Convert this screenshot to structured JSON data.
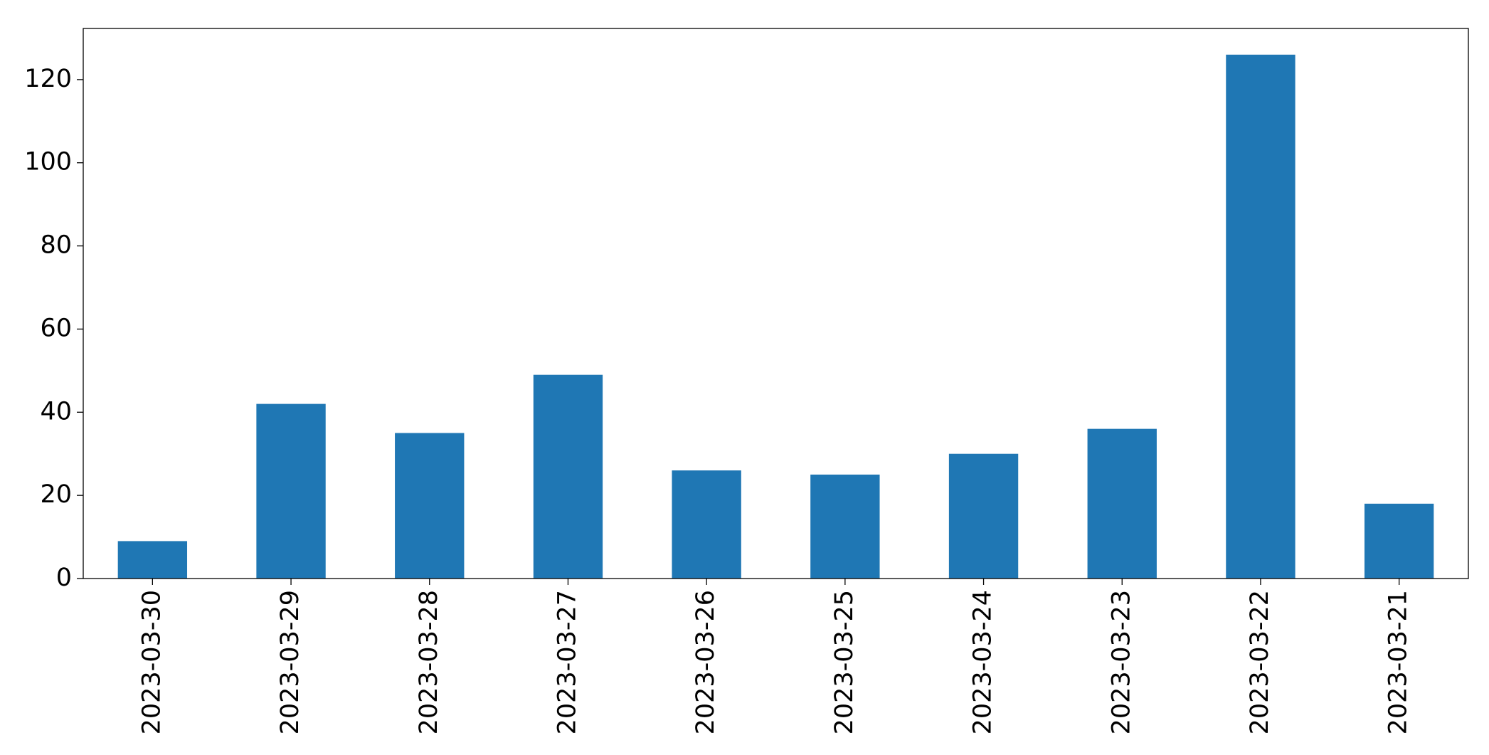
{
  "chart_data": {
    "type": "bar",
    "categories": [
      "2023-03-30",
      "2023-03-29",
      "2023-03-28",
      "2023-03-27",
      "2023-03-26",
      "2023-03-25",
      "2023-03-24",
      "2023-03-23",
      "2023-03-22",
      "2023-03-21"
    ],
    "values": [
      9,
      42,
      35,
      49,
      26,
      25,
      30,
      36,
      126,
      18
    ],
    "color": "#1f77b4",
    "ylim": [
      0,
      132.3
    ],
    "yticks": [
      0,
      20,
      40,
      60,
      80,
      100,
      120
    ],
    "grid": false
  }
}
